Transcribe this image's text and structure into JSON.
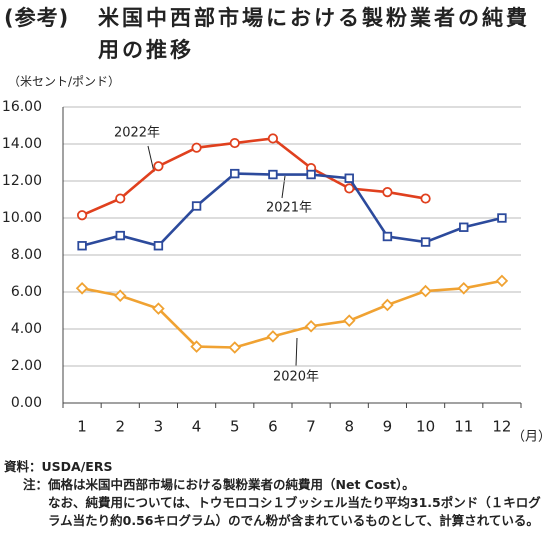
{
  "title_prefix": "(参考)",
  "chart_data": {
    "type": "line",
    "title": "米国中西部市場における製粉業者の純費用の推移",
    "y_label": "（米セント/ポンド）",
    "x_label": "（月）",
    "categories": [
      "1",
      "2",
      "3",
      "4",
      "5",
      "6",
      "7",
      "8",
      "9",
      "10",
      "11",
      "12"
    ],
    "series": [
      {
        "name": "2022年",
        "color": "#e0401e",
        "marker": "circle",
        "values": [
          10.15,
          11.05,
          12.8,
          13.8,
          14.05,
          14.3,
          12.7,
          11.6,
          11.4,
          11.05,
          null,
          null
        ]
      },
      {
        "name": "2021年",
        "color": "#2c4a9c",
        "marker": "square",
        "values": [
          8.5,
          9.05,
          8.5,
          10.65,
          12.4,
          12.35,
          12.35,
          12.15,
          9.0,
          8.7,
          9.5,
          10.0
        ]
      },
      {
        "name": "2020年",
        "color": "#f0a232",
        "marker": "diamond",
        "values": [
          6.2,
          5.8,
          5.1,
          3.05,
          3.0,
          3.6,
          4.15,
          4.45,
          5.3,
          6.05,
          6.2,
          6.6
        ]
      }
    ],
    "ylim": [
      0,
      16
    ],
    "yticks": [
      {
        "value": 0,
        "label": "0.00"
      },
      {
        "value": 2,
        "label": "2.00"
      },
      {
        "value": 4,
        "label": "4.00"
      },
      {
        "value": 6,
        "label": "6.00"
      },
      {
        "value": 8,
        "label": "8.00"
      },
      {
        "value": 10,
        "label": "10.00"
      },
      {
        "value": 12,
        "label": "12.00"
      },
      {
        "value": 14,
        "label": "14.00"
      },
      {
        "value": 16,
        "label": "16.00"
      }
    ],
    "grid": true
  },
  "notes": {
    "source_label": "資料：",
    "source": "USDA/ERS",
    "note_label": "注：",
    "note": [
      "価格は米国中西部市場における製粉業者の純費用（Net Cost）。",
      "なお、純費用については、トウモロコシ１ブッシェル当たり平均31.5ポンド（１キログラム当たり約0.56キログラム）のでん粉が含まれているものとして、計算されている。"
    ]
  }
}
